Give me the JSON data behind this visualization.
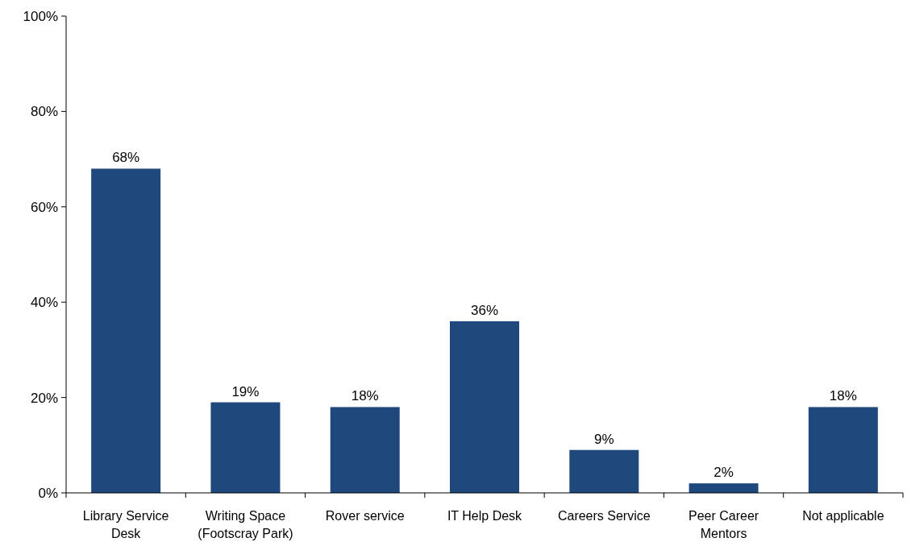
{
  "chart_data": {
    "type": "bar",
    "categories": [
      "Library Service Desk",
      "Writing Space (Footscray Park)",
      "Rover service",
      "IT Help Desk",
      "Careers Service",
      "Peer Career Mentors",
      "Not applicable"
    ],
    "values": [
      68,
      19,
      18,
      36,
      9,
      2,
      18
    ],
    "color": "#1f497d",
    "ylim": [
      0,
      100
    ],
    "yticks": [
      {
        "value": 0,
        "label": "0%"
      },
      {
        "value": 20,
        "label": "20%"
      },
      {
        "value": 40,
        "label": "40%"
      },
      {
        "value": 60,
        "label": "60%"
      },
      {
        "value": 80,
        "label": "80%"
      },
      {
        "value": 100,
        "label": "100%"
      }
    ],
    "value_labels": [
      "68%",
      "19%",
      "18%",
      "36%",
      "9%",
      "2%",
      "18%"
    ],
    "grid": false
  }
}
